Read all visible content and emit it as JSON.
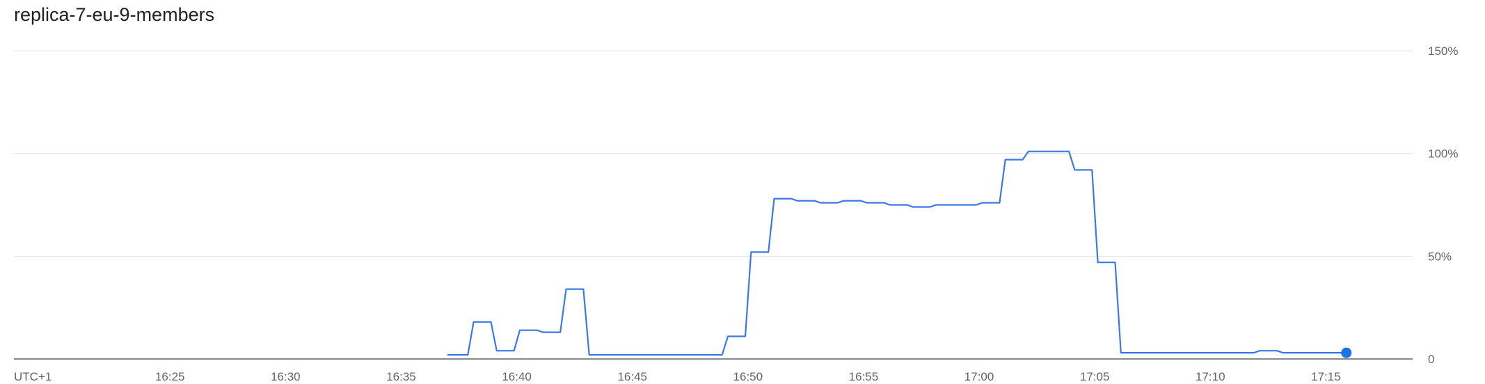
{
  "chart_data": {
    "type": "line",
    "title": "replica-7-eu-9-members",
    "timezone_label": "UTC+1",
    "x_ticks": [
      "16:25",
      "16:30",
      "16:35",
      "16:40",
      "16:45",
      "16:50",
      "16:55",
      "17:00",
      "17:05",
      "17:10",
      "17:15"
    ],
    "y_ticks": [
      "0",
      "50%",
      "100%",
      "150%"
    ],
    "ylim": [
      0,
      150
    ],
    "xlim": [
      "16:18:15",
      "17:18:45"
    ],
    "grid": true,
    "line_color": "#3b78e7",
    "marker_color": "#1a73e8",
    "series": [
      {
        "x": [
          "16:37:00",
          "16:37:53",
          "16:38:08",
          "16:38:53",
          "16:39:08",
          "16:39:53",
          "16:40:08",
          "16:40:53",
          "16:41:08",
          "16:41:53",
          "16:42:08",
          "16:42:53",
          "16:43:08",
          "16:48:53",
          "16:49:08",
          "16:49:53",
          "16:50:08",
          "16:50:53",
          "16:51:08",
          "16:51:53",
          "16:52:08",
          "16:52:53",
          "16:53:08",
          "16:53:53",
          "16:54:08",
          "16:54:53",
          "16:55:08",
          "16:55:53",
          "16:56:08",
          "16:56:53",
          "16:57:08",
          "16:57:53",
          "16:58:08",
          "16:58:53",
          "16:59:08",
          "16:59:53",
          "17:00:08",
          "17:00:53",
          "17:01:08",
          "17:01:53",
          "17:02:08",
          "17:02:53",
          "17:03:08",
          "17:03:53",
          "17:04:08",
          "17:04:53",
          "17:05:08",
          "17:05:53",
          "17:06:08",
          "17:11:53",
          "17:12:08",
          "17:12:53",
          "17:13:08",
          "17:15:53"
        ],
        "values": [
          2,
          2,
          18,
          18,
          4,
          4,
          14,
          14,
          13,
          13,
          34,
          34,
          2,
          2,
          11,
          11,
          52,
          52,
          78,
          78,
          77,
          77,
          76,
          76,
          77,
          77,
          76,
          76,
          75,
          75,
          74,
          74,
          75,
          75,
          75,
          75,
          76,
          76,
          97,
          97,
          101,
          101,
          101,
          101,
          92,
          92,
          47,
          47,
          3,
          3,
          4,
          4,
          3,
          3
        ]
      }
    ]
  }
}
